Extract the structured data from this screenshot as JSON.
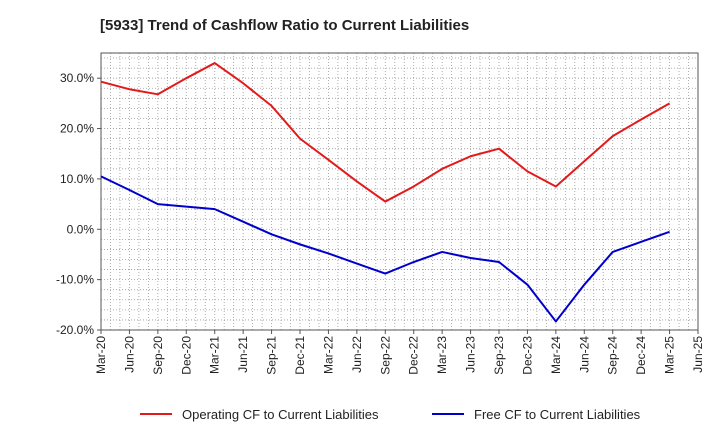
{
  "chart_data": {
    "type": "line",
    "title": "[5933]  Trend of Cashflow Ratio to Current Liabilities",
    "xlabel": "",
    "ylabel": "",
    "categories": [
      "Mar-20",
      "Jun-20",
      "Sep-20",
      "Dec-20",
      "Mar-21",
      "Jun-21",
      "Sep-21",
      "Dec-21",
      "Mar-22",
      "Jun-22",
      "Sep-22",
      "Dec-22",
      "Mar-23",
      "Jun-23",
      "Sep-23",
      "Dec-23",
      "Mar-24",
      "Jun-24",
      "Sep-24",
      "Dec-24",
      "Mar-25",
      "Jun-25"
    ],
    "y_ticks": [
      30,
      20,
      10,
      0,
      -10,
      -20
    ],
    "y_tick_labels": [
      "30.0%",
      "20.0%",
      "10.0%",
      "0.0%",
      "-10.0%",
      "-20.0%"
    ],
    "ylim": [
      -20,
      35
    ],
    "grid": true,
    "legend_position": "bottom",
    "series": [
      {
        "name": "Operating CF to Current Liabilities",
        "color": "#e31a1c",
        "values": [
          29.3,
          27.8,
          26.8,
          30.0,
          33.0,
          29.0,
          24.5,
          18.0,
          13.8,
          9.5,
          5.5,
          8.5,
          12.0,
          14.5,
          16.0,
          11.5,
          8.5,
          13.5,
          18.5,
          21.8,
          25.0,
          null
        ]
      },
      {
        "name": "Free CF to Current Liabilities",
        "color": "#0000cd",
        "values": [
          10.5,
          7.8,
          5.0,
          4.5,
          4.0,
          1.5,
          -1.0,
          -3.0,
          -4.8,
          -6.8,
          -8.8,
          -6.5,
          -4.5,
          -5.7,
          -6.5,
          -11.0,
          -18.3,
          -11.0,
          -4.5,
          -2.5,
          -0.5,
          null
        ]
      }
    ]
  }
}
